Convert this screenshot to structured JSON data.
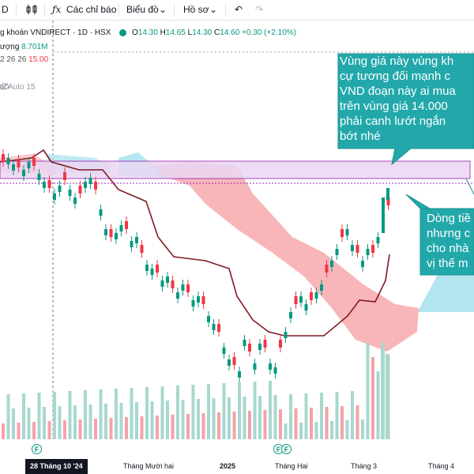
{
  "toolbar": {
    "symbol_tail": "D",
    "indicators_label": "Các chỉ báo",
    "chart_type_label": "Biểu đồ",
    "profile_label": "Hồ sơ"
  },
  "legend": {
    "title": "g khoán VNDIRECT · 1D · HSX",
    "o_label": "O",
    "o_value": "14.30",
    "h_label": "H",
    "h_value": "14.65",
    "l_label": "L",
    "l_value": "14.30",
    "c_label": "C",
    "c_value": "14.60",
    "change": "+0.30 (+2.10%)",
    "volume_label": "ượng",
    "volume_value": "8.701M",
    "ichimoku_params": "2 26 26",
    "ichimoku_value": "15.00",
    "alert_label": "al Auto 15"
  },
  "callouts": {
    "top": "Vùng giá này vùng kh\ncự tương đối mạnh c\nVND đoạn này ai mua\ntrên vùng giá 14.000\nphải canh lướt ngắn\nbớt nhé",
    "right": "Dòng tiề\nnhưng c\ncho nhà\nvị thế m"
  },
  "xaxis": {
    "date_cursor": "28 Tháng 10 '24",
    "labels": [
      "Tháng Mười hai",
      "2025",
      "Tháng Hai",
      "Tháng 3",
      "Tháng 4"
    ],
    "f_badge": "F"
  },
  "colors": {
    "up": "#089981",
    "down": "#f23645",
    "volume_up": "#a7d8cf",
    "volume_down": "#f5a2a8",
    "kijun": "#801922",
    "cloud_bull": "#a4e0ec",
    "cloud_bear": "#f7a9ad",
    "zone_fill": "#ead7f3",
    "zone_border": "#9c27b0",
    "callout_bg": "#22a8aa"
  }
}
